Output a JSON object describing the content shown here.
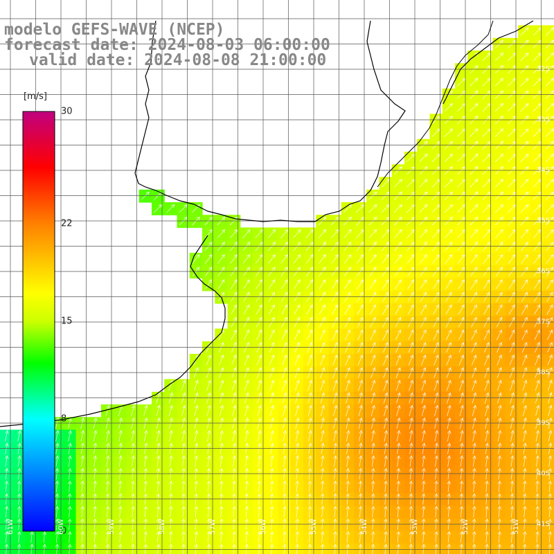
{
  "title": {
    "line1": "modelo GEFS-WAVE (NCEP)",
    "line2": "forecast date: 2024-08-03 06:00:00",
    "line3": "valid date: 2024-08-08 21:00:00"
  },
  "colorbar": {
    "unit": "[m/s]",
    "ticks": [
      {
        "label": "30",
        "value": 30
      },
      {
        "label": "22",
        "value": 22
      },
      {
        "label": "15",
        "value": 15
      },
      {
        "label": "8",
        "value": 8
      },
      {
        "label": "0",
        "value": 0
      }
    ],
    "min": 0,
    "max": 30,
    "stops": [
      {
        "value": 0,
        "color": "#0000ff"
      },
      {
        "value": 8,
        "color": "#00ffff"
      },
      {
        "value": 12,
        "color": "#00ff00"
      },
      {
        "value": 15,
        "color": "#ccff00"
      },
      {
        "value": 17,
        "color": "#ffff00"
      },
      {
        "value": 22,
        "color": "#ff8000"
      },
      {
        "value": 26,
        "color": "#ff0000"
      },
      {
        "value": 30,
        "color": "#c00080"
      }
    ]
  },
  "lat_labels": [
    {
      "text": "32S",
      "value": -32
    },
    {
      "text": "33S",
      "value": -33
    },
    {
      "text": "34S",
      "value": -34
    },
    {
      "text": "35S",
      "value": -35
    },
    {
      "text": "36S",
      "value": -36
    },
    {
      "text": "37S",
      "value": -37
    },
    {
      "text": "38S",
      "value": -38
    },
    {
      "text": "39S",
      "value": -39
    },
    {
      "text": "40S",
      "value": -40
    },
    {
      "text": "41S",
      "value": -41
    }
  ],
  "lon_labels": [
    {
      "text": "61W",
      "value": -61
    },
    {
      "text": "60W",
      "value": -60
    },
    {
      "text": "59W",
      "value": -59
    },
    {
      "text": "58W",
      "value": -58
    },
    {
      "text": "57W",
      "value": -57
    },
    {
      "text": "56W",
      "value": -56
    },
    {
      "text": "55W",
      "value": -55
    },
    {
      "text": "54W",
      "value": -54
    },
    {
      "text": "53W",
      "value": -53
    },
    {
      "text": "52W",
      "value": -52
    },
    {
      "text": "51W",
      "value": -51
    }
  ],
  "colors": {
    "land": "#ffffff",
    "coastline": "#000000",
    "grid": "#555555",
    "arrow": "#ffffff",
    "title": "#888888"
  }
}
